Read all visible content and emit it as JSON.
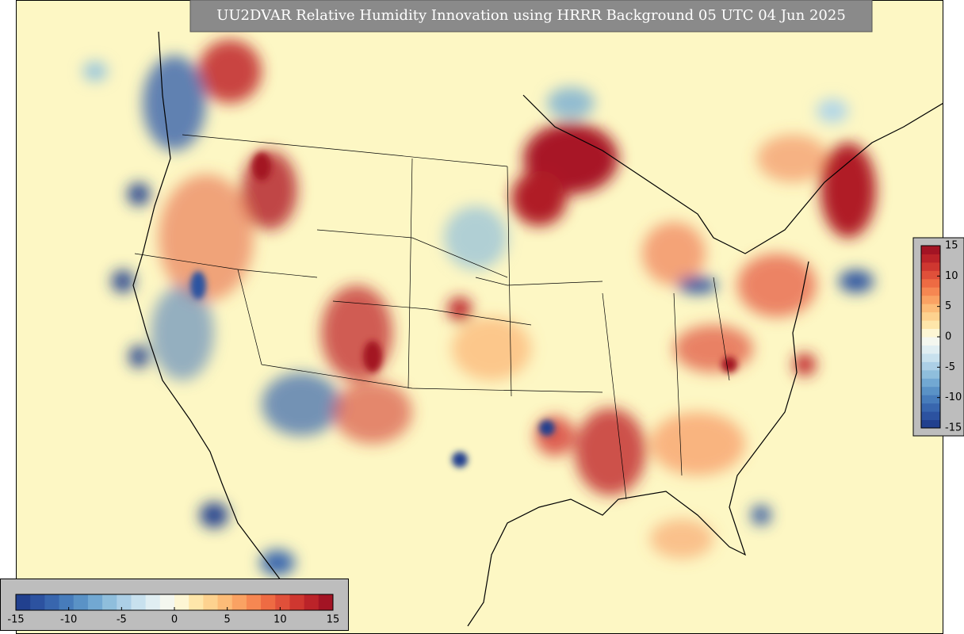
{
  "title": "UU2DVAR Relative Humidity Innovation using HRRR Background 05 UTC 04 Jun 2025",
  "colorbars": [
    {
      "orientation": "horizontal",
      "lim": [
        -15,
        15
      ],
      "ticks": [
        -15,
        -10,
        -5,
        0,
        5,
        10,
        15
      ],
      "colors": [
        "#21408e",
        "#2c52a0",
        "#3866ae",
        "#477cbb",
        "#5a92c6",
        "#72a8d2",
        "#8fbedc",
        "#accfe6",
        "#c8e1ee",
        "#e0eef2",
        "#f4f7ef",
        "#fdf6d4",
        "#fee6aa",
        "#fdd28f",
        "#fcbc78",
        "#faa263",
        "#f68752",
        "#ee6b43",
        "#e0503a",
        "#cf3730",
        "#bb2329",
        "#a31424"
      ]
    },
    {
      "orientation": "vertical",
      "lim": [
        -15,
        15
      ],
      "ticks": [
        -15,
        -10,
        -5,
        0,
        5,
        10,
        15
      ],
      "colors": [
        "#21408e",
        "#2c52a0",
        "#3866ae",
        "#477cbb",
        "#5a92c6",
        "#72a8d2",
        "#8fbedc",
        "#accfe6",
        "#c8e1ee",
        "#e0eef2",
        "#f4f7ef",
        "#fdf6d4",
        "#fee6aa",
        "#fdd28f",
        "#fcbc78",
        "#faa263",
        "#f68752",
        "#ee6b43",
        "#e0503a",
        "#cf3730",
        "#bb2329",
        "#a31424"
      ]
    }
  ]
}
